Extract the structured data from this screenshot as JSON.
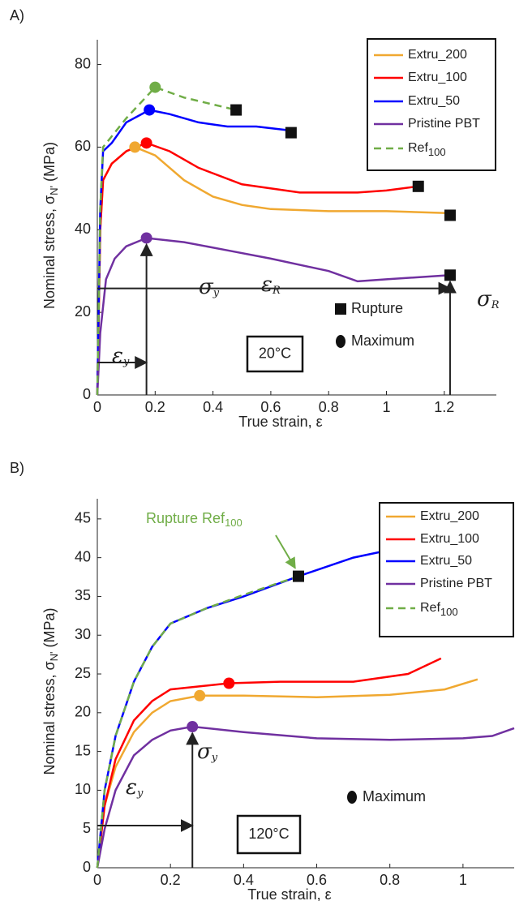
{
  "chart_data": [
    {
      "type": "line",
      "panel_label": "A)",
      "xlabel": {
        "text": "True strain,  ε"
      },
      "ylabel": {
        "text": "Nominal stress,  σ",
        "sub": "N'",
        "suffix": " (MPa)"
      },
      "xlim": [
        0,
        1.38
      ],
      "ylim": [
        0,
        86
      ],
      "xticks": [
        0,
        0.2,
        0.4,
        0.6,
        0.8,
        1,
        1.2
      ],
      "yticks": [
        0,
        20,
        40,
        60,
        80
      ],
      "series": [
        {
          "name": "Extru_200",
          "color": "#f0a830",
          "x": [
            0,
            0.01,
            0.02,
            0.05,
            0.1,
            0.13,
            0.2,
            0.3,
            0.4,
            0.5,
            0.6,
            0.8,
            1.0,
            1.22
          ],
          "values": [
            0,
            40,
            52,
            56,
            59,
            60,
            58,
            52,
            48,
            46,
            45,
            44.5,
            44.5,
            44
          ],
          "max_x": 0.13,
          "max_y": 60,
          "rupture_x": 1.22,
          "rupture_y": 43.5
        },
        {
          "name": "Extru_100",
          "color": "#ff0000",
          "x": [
            0,
            0.01,
            0.02,
            0.05,
            0.1,
            0.17,
            0.25,
            0.35,
            0.5,
            0.7,
            0.9,
            1.0,
            1.11
          ],
          "values": [
            0,
            40,
            52,
            56,
            59,
            61,
            59,
            55,
            51,
            49,
            49,
            49.5,
            50.5
          ],
          "max_x": 0.17,
          "max_y": 61,
          "rupture_x": 1.11,
          "rupture_y": 50.5
        },
        {
          "name": "Extru_50",
          "color": "#0000ff",
          "x": [
            0,
            0.01,
            0.02,
            0.05,
            0.1,
            0.18,
            0.25,
            0.35,
            0.45,
            0.55,
            0.67
          ],
          "values": [
            0,
            45,
            59,
            61,
            66,
            69,
            68,
            66,
            65,
            65,
            64
          ],
          "max_x": 0.18,
          "max_y": 69,
          "rupture_x": 0.67,
          "rupture_y": 63.5
        },
        {
          "name": "Pristine PBT",
          "color": "#7030a0",
          "x": [
            0,
            0.01,
            0.03,
            0.06,
            0.1,
            0.17,
            0.3,
            0.45,
            0.6,
            0.8,
            0.9,
            1.0,
            1.22
          ],
          "values": [
            0,
            15,
            28,
            33,
            36,
            38,
            37,
            35,
            33,
            30,
            27.5,
            28,
            29
          ],
          "max_x": 0.17,
          "max_y": 38,
          "rupture_x": 1.22,
          "rupture_y": 29
        },
        {
          "name": "Ref",
          "name_sub": "100",
          "color": "#70ad47",
          "dashed": true,
          "x": [
            0,
            0.01,
            0.02,
            0.1,
            0.2,
            0.3,
            0.48
          ],
          "values": [
            0,
            45,
            60,
            67,
            74.5,
            72,
            69
          ],
          "max_x": 0.2,
          "max_y": 74.5,
          "rupture_x": 0.48,
          "rupture_y": 69
        }
      ],
      "annotations": [
        {
          "text": "σ",
          "sub": "y"
        },
        {
          "text": "ε",
          "sub": "R"
        },
        {
          "text": "σ",
          "sub": "R"
        },
        {
          "text": "ε",
          "sub": "y"
        }
      ],
      "key": [
        "Rupture",
        "Maximum"
      ],
      "temperature": "20°C"
    },
    {
      "type": "line",
      "panel_label": "B)",
      "xlabel": {
        "text": "True strain,  ε"
      },
      "ylabel": {
        "text": "Nominal stress,  σ",
        "sub": "N'",
        "suffix": " (MPa)"
      },
      "xlim": [
        0,
        1.14
      ],
      "ylim": [
        0,
        47.6
      ],
      "xticks": [
        0,
        0.2,
        0.4,
        0.6,
        0.8,
        1
      ],
      "yticks": [
        0,
        5,
        10,
        15,
        20,
        25,
        30,
        35,
        40,
        45
      ],
      "series": [
        {
          "name": "Extru_200",
          "color": "#f0a830",
          "x": [
            0,
            0.02,
            0.05,
            0.1,
            0.15,
            0.2,
            0.28,
            0.4,
            0.6,
            0.8,
            0.95,
            1.04
          ],
          "values": [
            0,
            8,
            13,
            17.5,
            20,
            21.5,
            22.2,
            22.2,
            22,
            22.3,
            23,
            24.3
          ],
          "max_x": 0.28,
          "max_y": 22.2
        },
        {
          "name": "Extru_100",
          "color": "#ff0000",
          "x": [
            0,
            0.02,
            0.05,
            0.1,
            0.15,
            0.2,
            0.36,
            0.5,
            0.7,
            0.85,
            0.94
          ],
          "values": [
            0,
            8,
            14,
            19,
            21.5,
            23,
            23.8,
            24,
            24,
            25,
            27
          ],
          "max_x": 0.36,
          "max_y": 23.8
        },
        {
          "name": "Extru_50",
          "color": "#0000ff",
          "x": [
            0,
            0.02,
            0.05,
            0.1,
            0.15,
            0.2,
            0.3,
            0.4,
            0.55,
            0.7,
            0.8,
            0.85
          ],
          "values": [
            0,
            10,
            17,
            24,
            28.5,
            31.5,
            33.5,
            35,
            37.6,
            40,
            41,
            41.5
          ]
        },
        {
          "name": "Pristine PBT",
          "color": "#7030a0",
          "x": [
            0,
            0.02,
            0.05,
            0.1,
            0.15,
            0.2,
            0.26,
            0.4,
            0.6,
            0.8,
            1.0,
            1.08,
            1.14
          ],
          "values": [
            0,
            5,
            10,
            14.5,
            16.5,
            17.7,
            18.2,
            17.5,
            16.7,
            16.5,
            16.7,
            17,
            18
          ],
          "max_x": 0.26,
          "max_y": 18.2
        },
        {
          "name": "Ref",
          "name_sub": "100",
          "color": "#70ad47",
          "dashed": true,
          "x": [
            0,
            0.02,
            0.05,
            0.1,
            0.15,
            0.2,
            0.3,
            0.4,
            0.55
          ],
          "values": [
            0,
            10,
            17,
            24,
            28.5,
            31.5,
            33.5,
            35.2,
            37.6
          ],
          "rupture_x": 0.55,
          "rupture_y": 37.6
        }
      ],
      "annotations": [
        {
          "text": "σ",
          "sub": "y"
        },
        {
          "text": "ε",
          "sub": "y"
        },
        {
          "text": "Rupture Ref",
          "sub": "100"
        }
      ],
      "key": [
        "Maximum"
      ],
      "temperature": "120°C"
    }
  ]
}
